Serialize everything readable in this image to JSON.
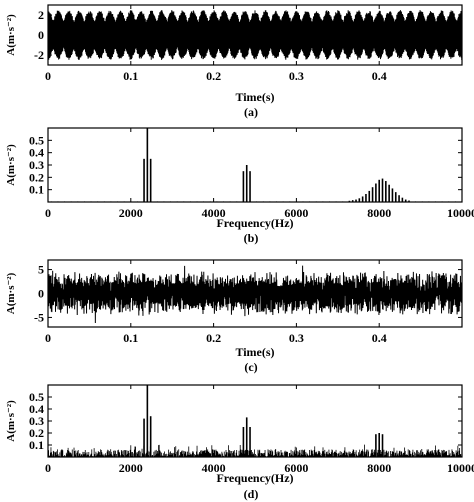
{
  "chart_data": [
    {
      "type": "line",
      "caption": "(a)",
      "xlabel": "Time(s)",
      "ylabel": "A(m·s⁻²)",
      "xlim": [
        0,
        0.5
      ],
      "ylim": [
        -3,
        3
      ],
      "x_ticks": [
        0,
        0.1,
        0.2,
        0.3,
        0.4
      ],
      "y_ticks": [
        -2,
        0,
        2
      ],
      "signal": {
        "kind": "amplitude-modulated sinusoid",
        "amplitude": 2.5,
        "modulation_frequency_hz": 80,
        "noise": false
      }
    },
    {
      "type": "bar",
      "caption": "(b)",
      "xlabel": "Frequency(Hz)",
      "ylabel": "A(m·s⁻²)",
      "xlim": [
        0,
        10000
      ],
      "ylim": [
        0,
        0.6
      ],
      "x_ticks": [
        0,
        2000,
        4000,
        6000,
        8000,
        10000
      ],
      "y_ticks": [
        0.1,
        0.2,
        0.3,
        0.4,
        0.5
      ],
      "x": [
        2320,
        2400,
        2480,
        4720,
        4800,
        4880,
        7280,
        7360,
        7440,
        7520,
        7600,
        7680,
        7760,
        7840,
        7920,
        8000,
        8080,
        8160,
        8240,
        8320,
        8400,
        8480,
        8560,
        8640,
        8720
      ],
      "values": [
        0.35,
        0.6,
        0.35,
        0.25,
        0.3,
        0.25,
        0.01,
        0.015,
        0.02,
        0.03,
        0.045,
        0.065,
        0.09,
        0.12,
        0.15,
        0.18,
        0.19,
        0.17,
        0.14,
        0.11,
        0.08,
        0.055,
        0.035,
        0.02,
        0.012
      ],
      "floor_level": 0.005
    },
    {
      "type": "line",
      "caption": "(c)",
      "xlabel": "Time(s)",
      "ylabel": "A(m·s⁻²)",
      "xlim": [
        0,
        0.5
      ],
      "ylim": [
        -7,
        7
      ],
      "x_ticks": [
        0,
        0.1,
        0.2,
        0.3,
        0.4
      ],
      "y_ticks": [
        -5,
        0,
        5
      ],
      "signal": {
        "kind": "noisy modulated vibration",
        "amplitude": 3.5,
        "noise_amplitude": 2.5,
        "noise": true
      }
    },
    {
      "type": "bar",
      "caption": "(d)",
      "xlabel": "Frequency(Hz)",
      "ylabel": "A(m·s⁻²)",
      "xlim": [
        0,
        10000
      ],
      "ylim": [
        0,
        0.6
      ],
      "x_ticks": [
        0,
        2000,
        4000,
        6000,
        8000,
        10000
      ],
      "y_ticks": [
        0.1,
        0.2,
        0.3,
        0.4,
        0.5
      ],
      "x": [
        2320,
        2400,
        2480,
        4720,
        4800,
        4880,
        7920,
        8000,
        8080
      ],
      "values": [
        0.32,
        0.6,
        0.34,
        0.25,
        0.33,
        0.25,
        0.19,
        0.2,
        0.19
      ],
      "noise_floor": 0.08
    }
  ]
}
